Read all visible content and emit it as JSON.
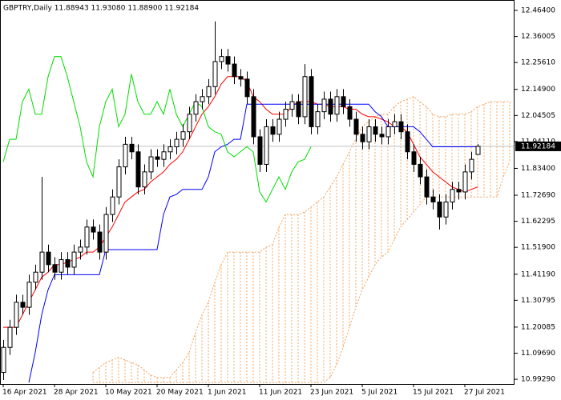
{
  "chart_data": {
    "type": "candlestick",
    "title": "GBPTRY,Daily  11.88943 11.93080 11.88900 11.92184",
    "categories": [
      "16 Apr 2021",
      null,
      null,
      null,
      null,
      null,
      null,
      null,
      "28 Apr 2021",
      null,
      null,
      null,
      null,
      null,
      null,
      null,
      "10 May 2021",
      null,
      null,
      null,
      null,
      null,
      null,
      null,
      "20 May 2021",
      null,
      null,
      null,
      null,
      null,
      null,
      null,
      "1 Jun 2021",
      null,
      null,
      null,
      null,
      null,
      null,
      null,
      "11 Jun 2021",
      null,
      null,
      null,
      null,
      null,
      null,
      null,
      "23 Jun 2021",
      null,
      null,
      null,
      null,
      null,
      null,
      null,
      "5 Jul 2021",
      null,
      null,
      null,
      null,
      null,
      null,
      null,
      "15 Jul 2021",
      null,
      null,
      null,
      null,
      null,
      null,
      null,
      "27 Jul 2021",
      null,
      null,
      null,
      null,
      null,
      null,
      null
    ],
    "open": [
      11.02,
      11.12,
      11.2,
      11.3,
      11.28,
      11.38,
      11.42,
      11.5,
      11.45,
      11.42,
      11.47,
      11.44,
      11.5,
      11.52,
      11.6,
      11.58,
      11.5,
      11.65,
      11.72,
      11.84,
      11.93,
      11.9,
      11.76,
      11.82,
      11.88,
      11.87,
      11.9,
      11.92,
      11.95,
      11.98,
      12.05,
      12.1,
      12.12,
      12.16,
      12.26,
      12.28,
      12.25,
      12.2,
      12.19,
      12.12,
      11.96,
      11.85,
      12.0,
      11.97,
      12.03,
      12.07,
      12.1,
      12.04,
      12.2,
      12.0,
      12.06,
      12.11,
      12.05,
      12.12,
      12.08,
      12.03,
      11.97,
      11.94,
      12.0,
      11.97,
      11.96,
      12.0,
      12.02,
      11.98,
      11.9,
      11.85,
      11.8,
      11.72,
      11.7,
      11.64,
      11.7,
      11.75,
      11.74,
      11.82,
      11.88943,
      null,
      null,
      null,
      null,
      null
    ],
    "high": [
      11.15,
      11.23,
      11.33,
      11.33,
      11.41,
      11.45,
      11.8,
      11.53,
      11.48,
      11.5,
      11.5,
      11.53,
      11.55,
      11.63,
      11.63,
      11.61,
      11.68,
      11.75,
      11.87,
      11.96,
      11.96,
      11.93,
      11.85,
      11.91,
      11.91,
      11.93,
      11.95,
      11.98,
      12.01,
      12.08,
      12.13,
      12.15,
      12.19,
      12.42,
      12.31,
      12.31,
      12.28,
      12.23,
      12.22,
      12.15,
      11.99,
      12.03,
      12.03,
      12.06,
      12.1,
      12.13,
      12.13,
      12.25,
      12.23,
      12.09,
      12.14,
      12.14,
      12.15,
      12.15,
      12.11,
      12.06,
      12.0,
      12.03,
      12.03,
      12.0,
      12.03,
      12.05,
      12.05,
      12.01,
      11.93,
      11.88,
      11.83,
      11.75,
      11.73,
      11.73,
      11.78,
      11.78,
      11.85,
      11.9,
      11.9308,
      null,
      null,
      null,
      null,
      null
    ],
    "low": [
      10.99,
      11.09,
      11.17,
      11.25,
      11.25,
      11.35,
      11.39,
      11.42,
      11.39,
      11.39,
      11.41,
      11.41,
      11.47,
      11.49,
      11.55,
      11.47,
      11.47,
      11.62,
      11.69,
      11.81,
      11.87,
      11.73,
      11.73,
      11.79,
      11.84,
      11.84,
      11.87,
      11.89,
      11.92,
      11.95,
      12.02,
      12.07,
      12.09,
      12.13,
      12.23,
      12.22,
      12.17,
      12.16,
      12.09,
      11.93,
      11.82,
      11.82,
      11.94,
      11.94,
      12.0,
      12.04,
      12.01,
      12.01,
      11.97,
      11.97,
      12.03,
      12.02,
      12.02,
      12.05,
      12.0,
      11.94,
      11.91,
      11.91,
      11.94,
      11.93,
      11.93,
      11.97,
      11.95,
      11.87,
      11.82,
      11.77,
      11.69,
      11.67,
      11.59,
      11.61,
      11.67,
      11.71,
      11.71,
      11.79,
      11.889,
      null,
      null,
      null,
      null,
      null
    ],
    "close": [
      11.12,
      11.2,
      11.3,
      11.28,
      11.38,
      11.42,
      11.5,
      11.45,
      11.42,
      11.47,
      11.44,
      11.5,
      11.52,
      11.6,
      11.58,
      11.5,
      11.65,
      11.72,
      11.84,
      11.93,
      11.9,
      11.76,
      11.82,
      11.88,
      11.87,
      11.9,
      11.92,
      11.95,
      11.98,
      12.05,
      12.1,
      12.12,
      12.16,
      12.26,
      12.28,
      12.25,
      12.2,
      12.19,
      12.12,
      11.96,
      11.85,
      12.0,
      11.97,
      12.03,
      12.07,
      12.1,
      12.04,
      12.2,
      12.0,
      12.06,
      12.11,
      12.05,
      12.12,
      12.08,
      12.03,
      11.97,
      11.94,
      12.0,
      11.97,
      11.96,
      12.0,
      12.02,
      11.98,
      11.9,
      11.85,
      11.8,
      11.72,
      11.7,
      11.64,
      11.7,
      11.75,
      11.74,
      11.82,
      11.87,
      11.92184,
      null,
      null,
      null,
      null,
      null
    ],
    "up_color": "#ffffff",
    "down_color": "#000000",
    "wick_color": "#000000",
    "lines": [
      {
        "color": "#ff0000",
        "values": [
          11.2,
          11.2,
          11.2,
          11.25,
          11.3,
          11.35,
          11.4,
          11.42,
          11.45,
          11.45,
          11.46,
          11.47,
          11.48,
          11.5,
          11.5,
          11.52,
          11.56,
          11.6,
          11.65,
          11.7,
          11.72,
          11.74,
          11.75,
          11.78,
          11.8,
          11.82,
          11.85,
          11.87,
          11.9,
          11.95,
          12.0,
          12.05,
          12.08,
          12.12,
          12.17,
          12.2,
          12.2,
          12.2,
          12.18,
          12.12,
          12.1,
          12.07,
          12.05,
          12.05,
          12.05,
          12.08,
          12.1,
          12.1,
          12.1,
          12.09,
          12.09,
          12.08,
          12.08,
          12.08,
          12.07,
          12.07,
          12.05,
          12.04,
          12.04,
          12.03,
          12.02,
          12.0,
          12.0,
          11.98,
          11.93,
          11.88,
          11.85,
          11.82,
          11.8,
          11.78,
          11.76,
          11.75,
          11.74,
          11.75,
          11.76,
          null,
          null,
          null,
          null,
          null
        ]
      },
      {
        "color": "#0000ff",
        "values": [
          null,
          null,
          null,
          null,
          10.98,
          11.1,
          11.25,
          11.35,
          11.41,
          11.41,
          11.41,
          11.41,
          11.41,
          11.41,
          11.41,
          11.41,
          11.51,
          11.51,
          11.51,
          11.51,
          11.51,
          11.51,
          11.51,
          11.51,
          11.51,
          11.65,
          11.72,
          11.73,
          11.75,
          11.75,
          11.75,
          11.75,
          11.8,
          11.9,
          11.92,
          11.93,
          11.95,
          11.95,
          12.09,
          12.09,
          12.09,
          12.09,
          12.09,
          12.09,
          12.09,
          12.09,
          12.09,
          12.09,
          12.09,
          12.09,
          12.09,
          12.09,
          12.09,
          12.09,
          12.09,
          12.09,
          12.09,
          12.09,
          12.06,
          12.04,
          12.0,
          12.0,
          12.0,
          12.0,
          12.0,
          11.98,
          11.95,
          11.92,
          11.92,
          11.92,
          11.92,
          11.92,
          11.92,
          11.92,
          11.92,
          null,
          null,
          null,
          null,
          null
        ]
      },
      {
        "color": "#00dd00",
        "values": [
          11.86,
          11.95,
          11.95,
          12.1,
          12.15,
          12.05,
          12.05,
          12.2,
          12.28,
          12.28,
          12.2,
          12.1,
          12.0,
          11.86,
          11.8,
          12.0,
          12.1,
          12.15,
          12.0,
          12.05,
          12.21,
          12.1,
          12.05,
          12.05,
          12.1,
          12.05,
          12.15,
          12.05,
          12.0,
          12.05,
          12.1,
          12.08,
          12.0,
          11.98,
          11.97,
          11.9,
          11.88,
          11.9,
          11.92,
          11.9,
          11.74,
          11.7,
          11.75,
          11.8,
          11.75,
          11.82,
          11.86,
          11.87,
          11.92,
          null,
          null,
          null,
          null,
          null,
          null,
          null,
          null,
          null,
          null,
          null,
          null,
          null,
          null,
          null,
          null,
          null,
          null,
          null,
          null,
          null,
          null,
          null,
          null,
          null,
          null,
          null,
          null,
          null,
          null,
          null
        ]
      }
    ],
    "cloud": {
      "color": "#f4a460",
      "upper": [
        null,
        null,
        null,
        null,
        null,
        null,
        null,
        null,
        null,
        null,
        null,
        null,
        null,
        null,
        11.02,
        11.04,
        11.06,
        11.07,
        11.08,
        11.07,
        11.06,
        11.05,
        11.03,
        11.01,
        11.0,
        11.0,
        11.0,
        11.03,
        11.06,
        11.1,
        11.18,
        11.25,
        11.3,
        11.38,
        11.45,
        11.5,
        11.5,
        11.5,
        11.5,
        11.5,
        11.5,
        11.52,
        11.53,
        11.6,
        11.65,
        11.65,
        11.65,
        11.66,
        11.68,
        11.7,
        11.72,
        11.76,
        11.8,
        11.85,
        11.9,
        11.95,
        12.0,
        12.02,
        12.04,
        12.05,
        12.05,
        12.08,
        12.1,
        12.11,
        12.12,
        12.1,
        12.08,
        12.05,
        12.04,
        12.04,
        12.05,
        12.05,
        12.05,
        12.06,
        12.08,
        12.09,
        12.1,
        12.1,
        12.1,
        12.1
      ],
      "lower": [
        null,
        null,
        null,
        null,
        null,
        null,
        null,
        null,
        null,
        null,
        null,
        null,
        null,
        null,
        10.98,
        10.98,
        10.98,
        10.98,
        10.98,
        10.98,
        10.98,
        10.98,
        10.98,
        10.98,
        10.98,
        10.98,
        10.98,
        10.98,
        10.98,
        10.98,
        10.98,
        10.98,
        10.98,
        10.98,
        10.98,
        10.98,
        10.98,
        10.98,
        10.98,
        10.98,
        10.98,
        10.98,
        10.98,
        10.98,
        10.98,
        10.98,
        10.98,
        10.98,
        10.98,
        10.98,
        10.98,
        11.0,
        11.05,
        11.12,
        11.2,
        11.28,
        11.35,
        11.4,
        11.45,
        11.48,
        11.5,
        11.55,
        11.6,
        11.63,
        11.66,
        11.69,
        11.72,
        11.72,
        11.72,
        11.72,
        11.72,
        11.72,
        11.72,
        11.72,
        11.72,
        11.72,
        11.72,
        11.72,
        11.8,
        11.86
      ]
    },
    "price_line_color": "#c0c0c0",
    "ylim": [
      10.974,
      12.5055
    ],
    "yticks": [
      {
        "value": 12.464,
        "label": "12.46400"
      },
      {
        "value": 12.36005,
        "label": "12.36005"
      },
      {
        "value": 12.2561,
        "label": "12.25610"
      },
      {
        "value": 12.149,
        "label": "12.14900"
      },
      {
        "value": 12.04505,
        "label": "12.04505"
      },
      {
        "value": 11.9411,
        "label": "11.94110"
      },
      {
        "value": 11.834,
        "label": "11.83400"
      },
      {
        "value": 11.7269,
        "label": "11.72690"
      },
      {
        "value": 11.62295,
        "label": "11.62295"
      },
      {
        "value": 11.519,
        "label": "11.51900"
      },
      {
        "value": 11.4119,
        "label": "11.41190"
      },
      {
        "value": 11.30795,
        "label": "11.30795"
      },
      {
        "value": 11.20085,
        "label": "11.20085"
      },
      {
        "value": 11.0969,
        "label": "11.09690"
      },
      {
        "value": 10.9929,
        "label": "10.99290"
      }
    ],
    "grid": false
  }
}
